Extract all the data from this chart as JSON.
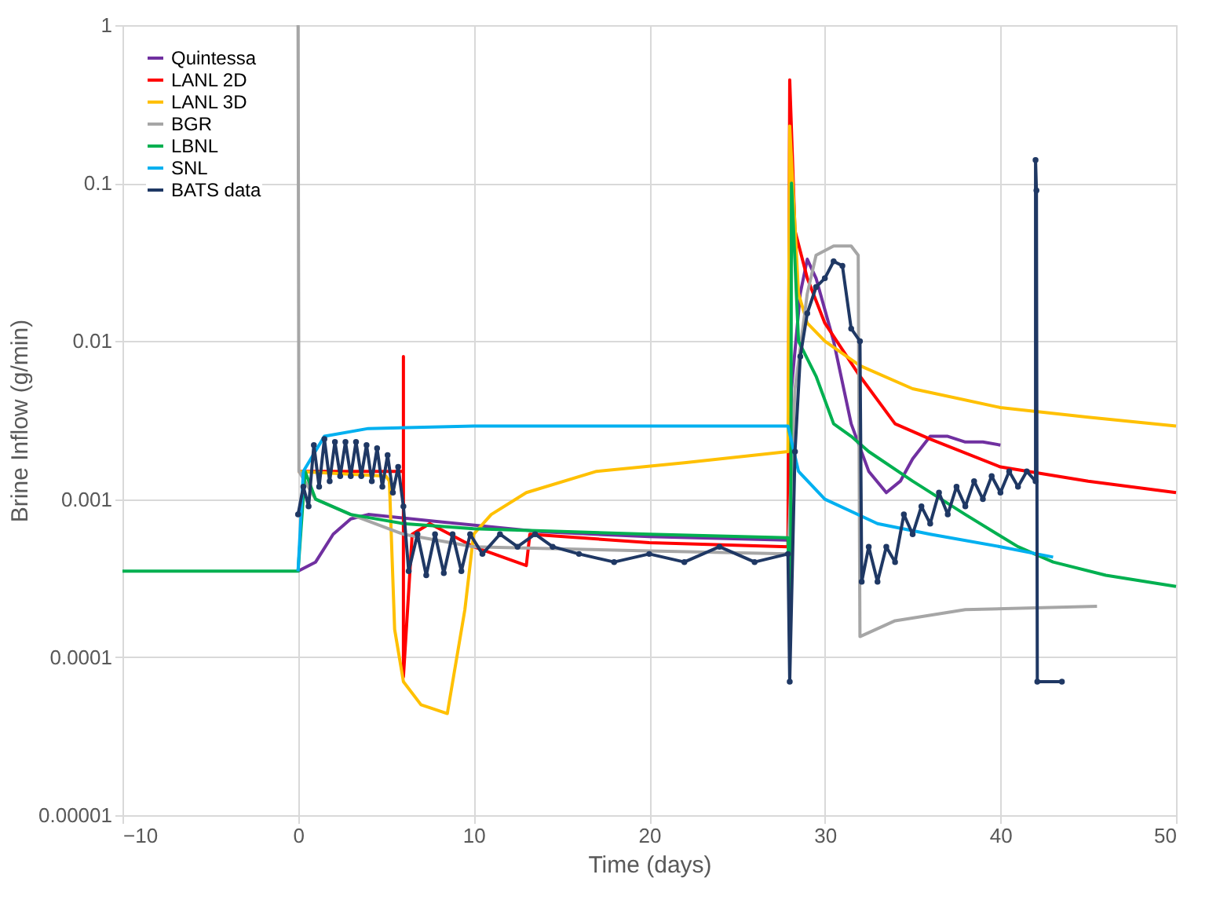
{
  "chart_data": {
    "type": "line",
    "xlabel": "Time (days)",
    "ylabel": "Brine Inflow (g/min)",
    "log": "y",
    "grid": true,
    "legend": "top left",
    "line_style": "solid",
    "xlim": [
      -10,
      50
    ],
    "xticks": [
      -10,
      0,
      10,
      20,
      30,
      40,
      50
    ],
    "ylim": [
      1e-05,
      1
    ],
    "yticks": [
      {
        "value": 1e-05,
        "label": "0.00001"
      },
      {
        "value": 0.0001,
        "label": "0.0001"
      },
      {
        "value": 0.001,
        "label": "0.001"
      },
      {
        "value": 0.01,
        "label": "0.01"
      },
      {
        "value": 0.1,
        "label": "0.1"
      },
      {
        "value": 1,
        "label": "1"
      }
    ],
    "series": [
      {
        "name": "Quintessa",
        "color": "#7030a0",
        "marker": "none",
        "x": [
          0,
          1,
          2,
          3,
          4,
          8,
          14,
          20,
          27.9,
          28.1,
          28.6,
          29,
          29.5,
          30.5,
          31.5,
          32.5,
          33.5,
          34.3,
          35,
          36,
          37,
          38,
          39,
          40
        ],
        "values": [
          0.00035,
          0.0004,
          0.0006,
          0.00075,
          0.0008,
          0.00072,
          0.00062,
          0.00058,
          0.00055,
          0.005,
          0.02,
          0.033,
          0.025,
          0.01,
          0.003,
          0.0015,
          0.0011,
          0.0013,
          0.0018,
          0.0025,
          0.0025,
          0.0023,
          0.0023,
          0.0022
        ]
      },
      {
        "name": "LANL 2D",
        "color": "#ff0000",
        "marker": "none",
        "x": [
          0,
          0.5,
          6,
          6,
          6,
          6.5,
          7.5,
          10,
          13,
          13.2,
          20,
          27.9,
          28,
          28.3,
          29,
          30,
          32,
          34,
          36,
          40,
          45,
          50
        ],
        "values": [
          0.0015,
          0.0015,
          0.0015,
          0.008,
          7.5e-05,
          0.0006,
          0.0007,
          0.0005,
          0.00038,
          0.0006,
          0.00053,
          0.0005,
          0.45,
          0.05,
          0.025,
          0.013,
          0.006,
          0.003,
          0.0024,
          0.0016,
          0.0013,
          0.0011
        ]
      },
      {
        "name": "LANL 3D",
        "color": "#ffc000",
        "marker": "none",
        "x": [
          0,
          5,
          5.2,
          5.5,
          6,
          7,
          8.5,
          9.5,
          10,
          11,
          13,
          17,
          22,
          27.9,
          28,
          28.5,
          29,
          30,
          32,
          35,
          40,
          45,
          50
        ],
        "values": [
          0.0015,
          0.0014,
          0.0013,
          0.00015,
          7e-05,
          5e-05,
          4.4e-05,
          0.0002,
          0.0006,
          0.0008,
          0.0011,
          0.0015,
          0.0017,
          0.002,
          0.23,
          0.02,
          0.013,
          0.01,
          0.007,
          0.005,
          0.0038,
          0.0033,
          0.0029
        ]
      },
      {
        "name": "BGR",
        "color": "#a6a6a6",
        "marker": "none",
        "x": [
          0,
          0.05,
          1,
          3,
          6,
          10,
          20,
          27.9,
          28.3,
          29,
          29.5,
          30.5,
          31.5,
          31.9,
          32,
          34,
          38,
          45.5
        ],
        "values": [
          1,
          0.0015,
          0.001,
          0.0008,
          0.0006,
          0.0005,
          0.00047,
          0.00045,
          0.005,
          0.02,
          0.035,
          0.04,
          0.04,
          0.035,
          0.000135,
          0.00017,
          0.0002,
          0.00021
        ]
      },
      {
        "name": "LBNL",
        "color": "#00b050",
        "marker": "none",
        "x": [
          -10,
          0,
          0.4,
          1,
          3,
          6,
          10,
          20,
          27.9,
          28.05,
          28.1,
          28.5,
          29.5,
          30.5,
          31.5,
          32.5,
          35,
          38,
          41,
          43,
          46,
          50
        ],
        "values": [
          0.00035,
          0.00035,
          0.0015,
          0.001,
          0.0008,
          0.0007,
          0.00065,
          0.0006,
          0.00057,
          0.00018,
          0.1,
          0.01,
          0.006,
          0.003,
          0.0025,
          0.002,
          0.0013,
          0.0008,
          0.0005,
          0.0004,
          0.00033,
          0.00028
        ]
      },
      {
        "name": "SNL",
        "color": "#00b0f0",
        "marker": "none",
        "x": [
          0,
          0.3,
          1.5,
          4,
          10,
          20,
          27.9,
          28.5,
          30,
          33,
          36,
          40,
          43
        ],
        "values": [
          0.00035,
          0.0015,
          0.0025,
          0.0028,
          0.0029,
          0.0029,
          0.0029,
          0.0015,
          0.001,
          0.0007,
          0.0006,
          0.0005,
          0.00043
        ]
      },
      {
        "name": "BATS data",
        "color": "#1f3864",
        "marker": "circle",
        "x": [
          0,
          0.3,
          0.6,
          0.9,
          1.2,
          1.5,
          1.8,
          2.1,
          2.4,
          2.7,
          3.0,
          3.3,
          3.6,
          3.9,
          4.2,
          4.5,
          4.8,
          5.1,
          5.4,
          5.7,
          6.0,
          6.3,
          6.8,
          7.3,
          7.8,
          8.3,
          8.8,
          9.3,
          9.8,
          10.5,
          11.5,
          12.5,
          13.5,
          14.5,
          16,
          18,
          20,
          22,
          24,
          26,
          27.9,
          28.0,
          28.3,
          28.6,
          29,
          29.5,
          30,
          30.5,
          31,
          31.5,
          32,
          32.1,
          32.5,
          33,
          33.5,
          34,
          34.5,
          35,
          35.5,
          36,
          36.5,
          37,
          37.5,
          38,
          38.5,
          39,
          39.5,
          40,
          40.5,
          41,
          41.5,
          42,
          42,
          42.05,
          42.1,
          43.5
        ],
        "values": [
          0.0008,
          0.0012,
          0.0009,
          0.0022,
          0.0012,
          0.0024,
          0.0013,
          0.0023,
          0.0014,
          0.0023,
          0.0014,
          0.0023,
          0.0014,
          0.0022,
          0.0013,
          0.0021,
          0.0012,
          0.0019,
          0.0011,
          0.0016,
          0.0009,
          0.00035,
          0.0006,
          0.00033,
          0.0006,
          0.00034,
          0.0006,
          0.00035,
          0.0006,
          0.00045,
          0.0006,
          0.0005,
          0.0006,
          0.0005,
          0.00045,
          0.0004,
          0.00045,
          0.0004,
          0.0005,
          0.0004,
          0.00045,
          7e-05,
          0.002,
          0.008,
          0.015,
          0.022,
          0.025,
          0.032,
          0.03,
          0.012,
          0.01,
          0.0003,
          0.0005,
          0.0003,
          0.0005,
          0.0004,
          0.0008,
          0.0006,
          0.0009,
          0.0007,
          0.0011,
          0.0008,
          0.0012,
          0.0009,
          0.0013,
          0.001,
          0.0014,
          0.0011,
          0.0015,
          0.0012,
          0.0015,
          0.0013,
          0.14,
          0.09,
          7e-05,
          7e-05
        ]
      }
    ]
  }
}
